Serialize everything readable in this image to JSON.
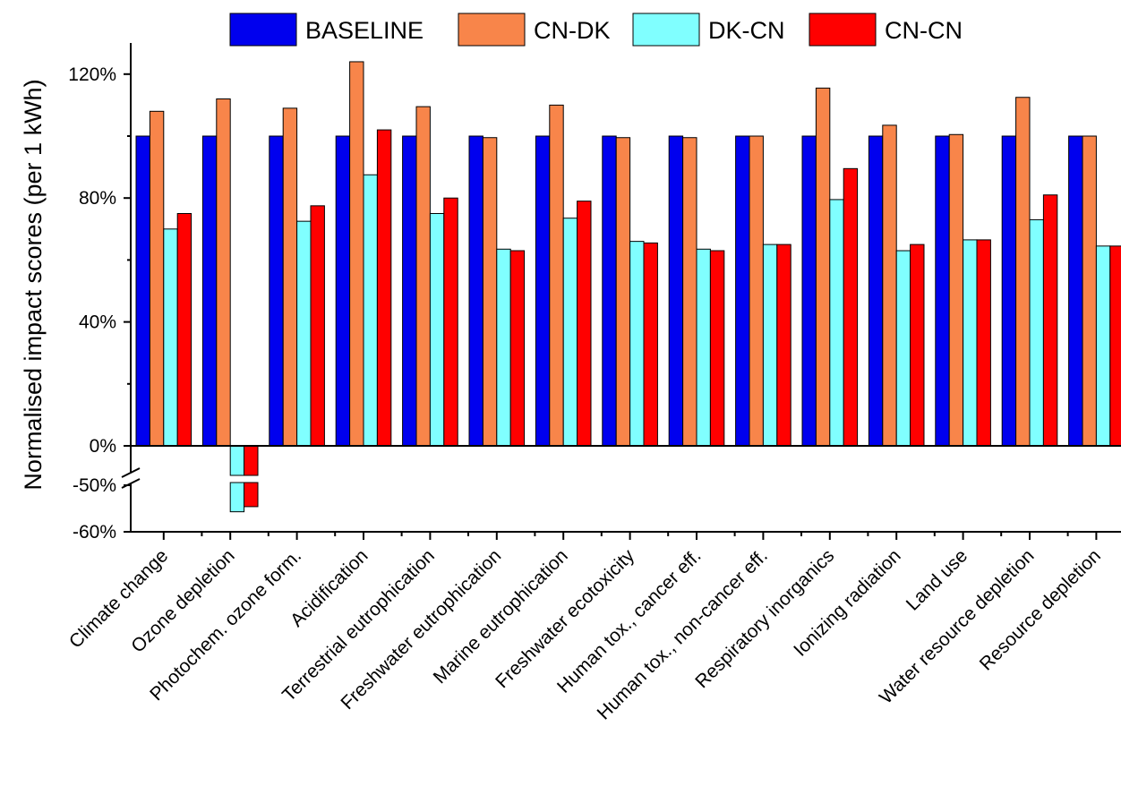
{
  "chart_data": {
    "type": "bar",
    "ylabel": "Normalised impact scores (per 1 kWh)",
    "xlabel": "",
    "y_ticks": [
      "-60%",
      "-50%",
      "0%",
      "40%",
      "80%",
      "120%"
    ],
    "ylim": [
      -60,
      130
    ],
    "axis_break": [
      -50,
      0
    ],
    "grid": false,
    "legend_position": "top",
    "categories": [
      "Climate change",
      "Ozone depletion",
      "Photochem. ozone form.",
      "Acidification",
      "Terrestrial eutrophication",
      "Freshwater eutrophication",
      "Marine eutrophication",
      "Freshwater ecotoxicity",
      "Human tox., cancer eff.",
      "Human tox., non-cancer eff.",
      "Respiratory inorganics",
      "Ionizing radiation",
      "Land use",
      "Water resource depletion",
      "Resource depletion"
    ],
    "series": [
      {
        "name": "BASELINE",
        "color": "#0000ee",
        "values": [
          100,
          100,
          100,
          100,
          100,
          100,
          100,
          100,
          100,
          100,
          100,
          100,
          100,
          100,
          100
        ]
      },
      {
        "name": "CN-DK",
        "color": "#f8854a",
        "values": [
          108,
          112,
          109,
          124,
          109.5,
          99.5,
          110,
          99.5,
          99.5,
          100,
          115.5,
          103.5,
          100.5,
          112.5,
          100
        ]
      },
      {
        "name": "DK-CN",
        "color": "#80ffff",
        "values": [
          70,
          -55.7,
          72.5,
          87.5,
          75,
          63.5,
          73.5,
          66,
          63.5,
          65,
          79.5,
          63,
          66.5,
          73,
          64.5
        ]
      },
      {
        "name": "CN-CN",
        "color": "#ff0000",
        "values": [
          75,
          -54.6,
          77.5,
          102,
          80,
          63,
          79,
          65.5,
          63,
          65,
          89.5,
          65,
          66.5,
          81,
          64.5
        ]
      }
    ]
  }
}
